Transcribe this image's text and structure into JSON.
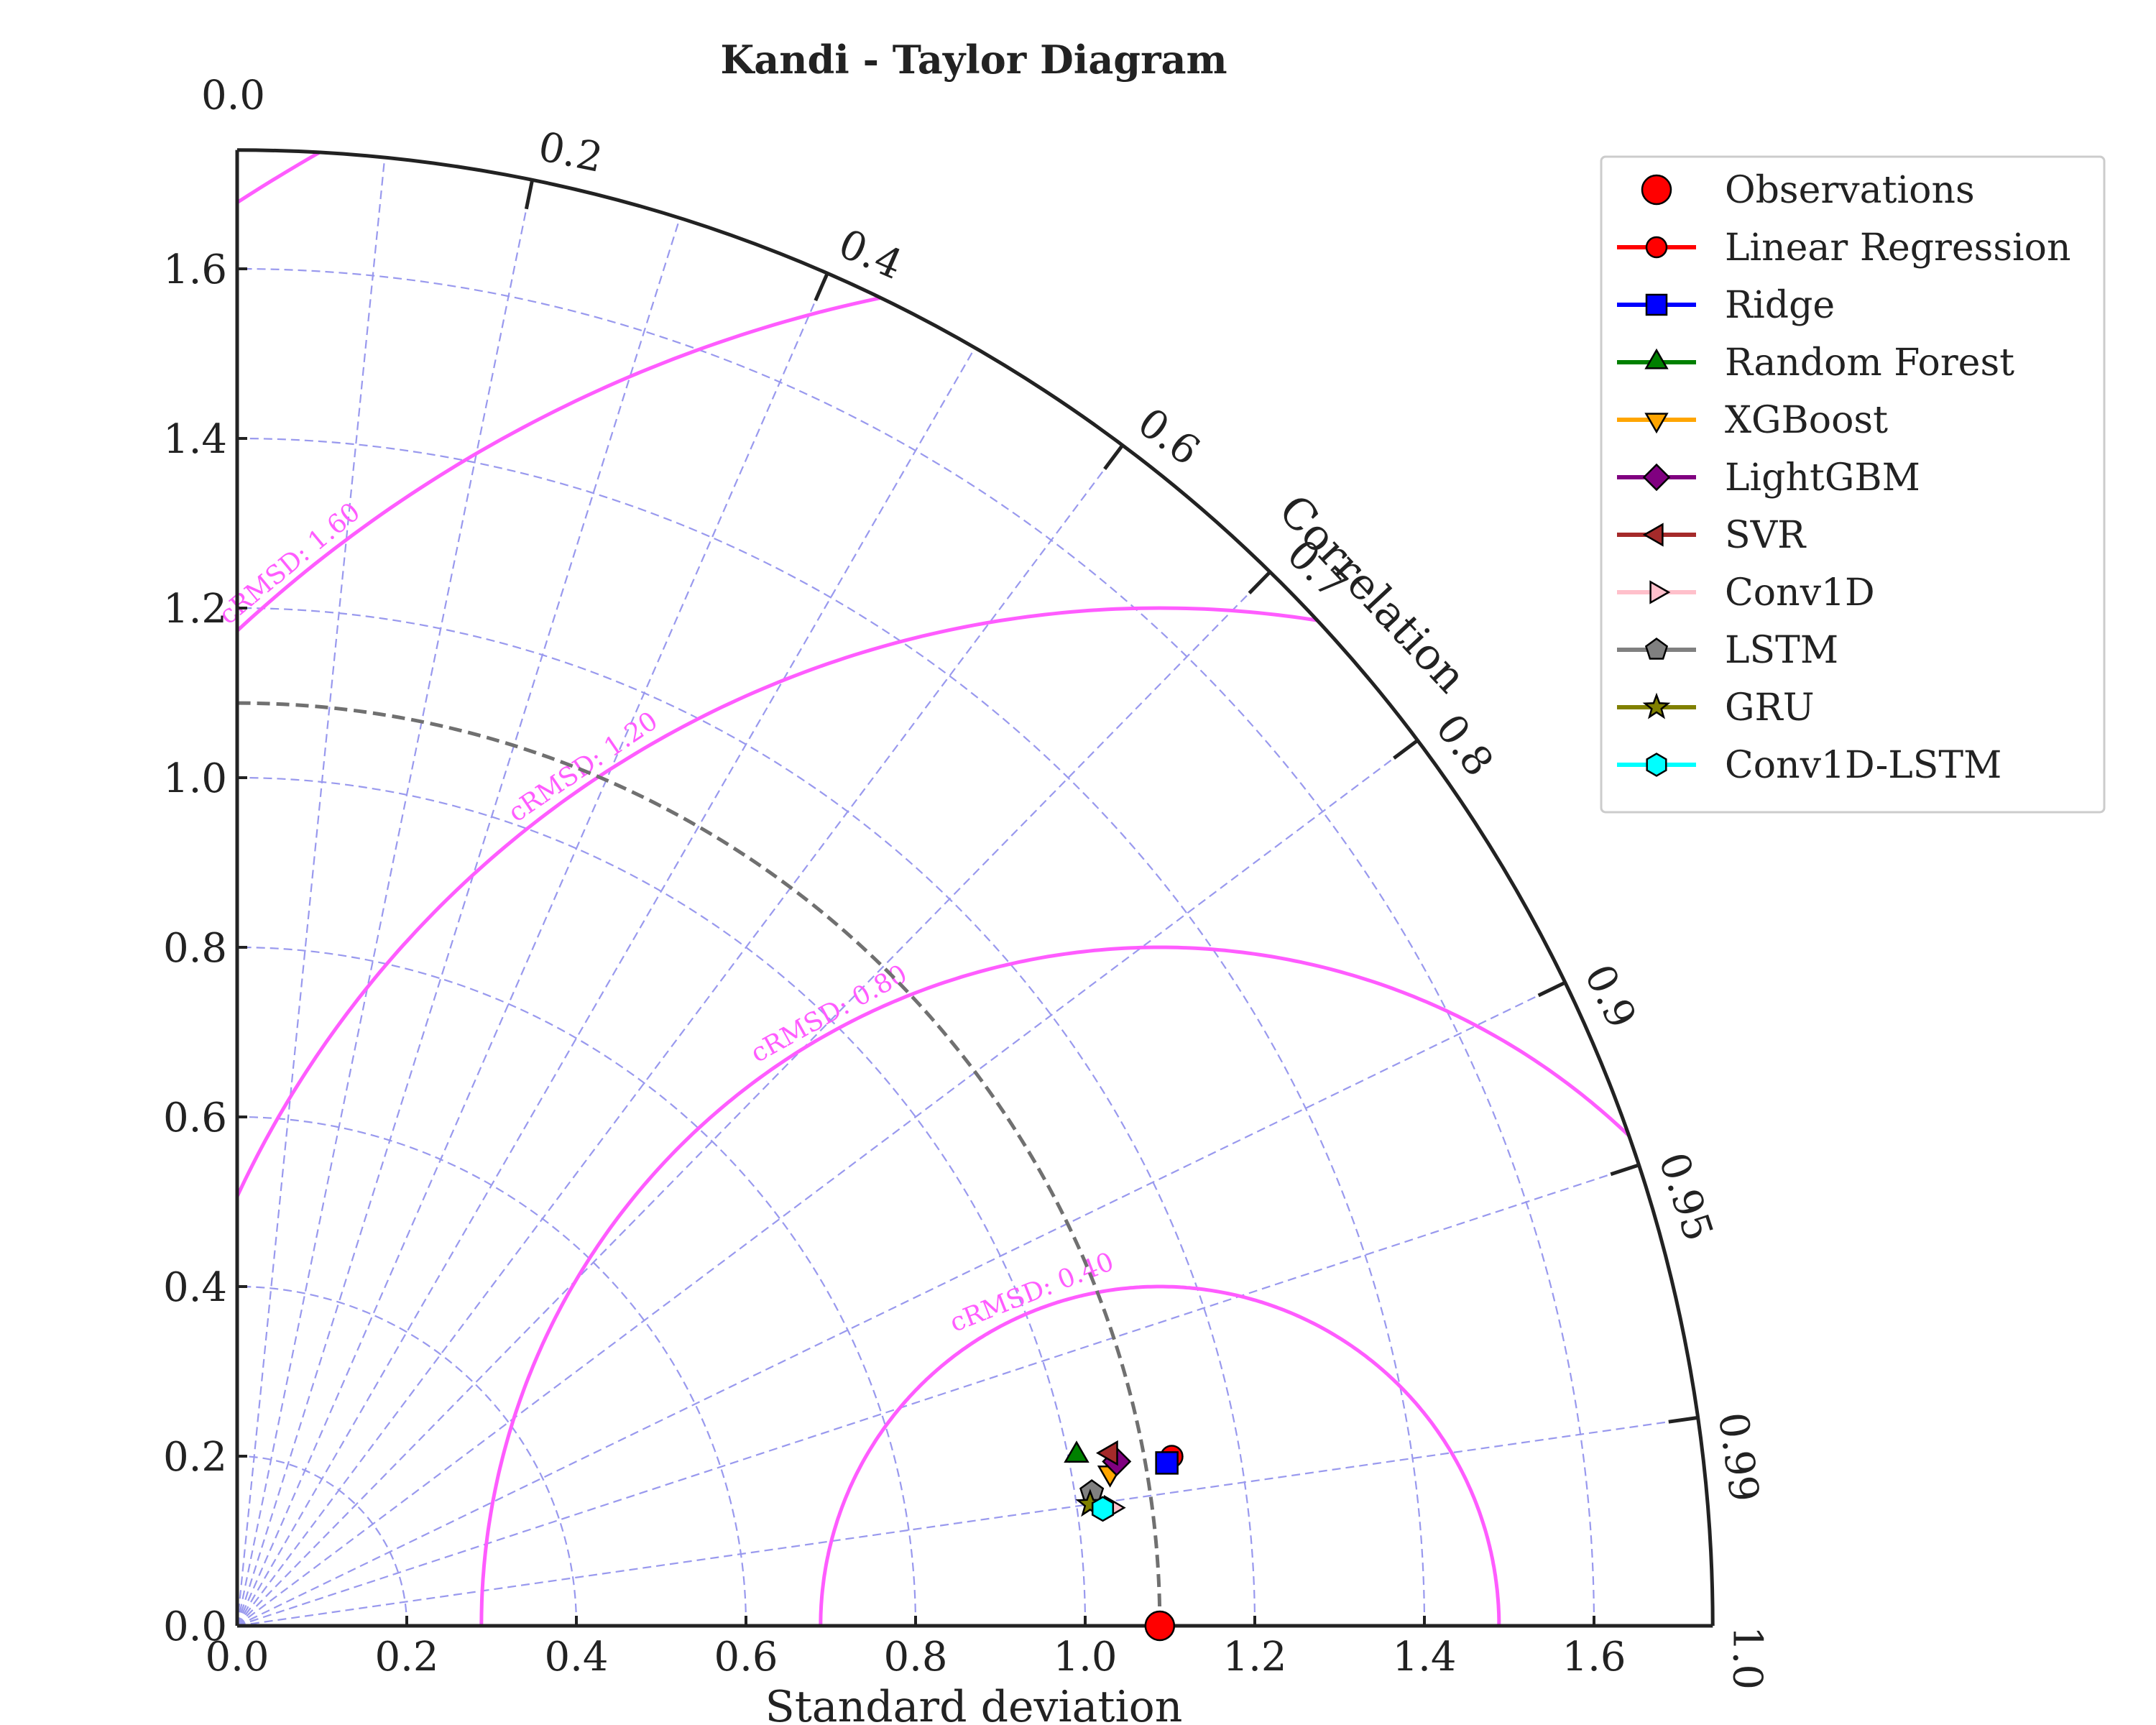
{
  "chart_data": {
    "type": "scatter",
    "subtype": "taylor-diagram",
    "title": "Kandi - Taylor Diagram",
    "xlabel": "Standard deviation",
    "ylabel": "",
    "correlation_label": "Correlation",
    "std_range": [
      0,
      1.74
    ],
    "std_ticks": [
      {
        "value": 0.0,
        "label": "0.0"
      },
      {
        "value": 0.2,
        "label": "0.2"
      },
      {
        "value": 0.4,
        "label": "0.4"
      },
      {
        "value": 0.6,
        "label": "0.6"
      },
      {
        "value": 0.8,
        "label": "0.8"
      },
      {
        "value": 1.0,
        "label": "1.0"
      },
      {
        "value": 1.2,
        "label": "1.2"
      },
      {
        "value": 1.4,
        "label": "1.4"
      },
      {
        "value": 1.6,
        "label": "1.6"
      }
    ],
    "correlation_ticks": [
      {
        "value": 0.0,
        "label": "0.0"
      },
      {
        "value": 0.2,
        "label": "0.2"
      },
      {
        "value": 0.4,
        "label": "0.4"
      },
      {
        "value": 0.6,
        "label": "0.6"
      },
      {
        "value": 0.7,
        "label": "0.7"
      },
      {
        "value": 0.8,
        "label": "0.8"
      },
      {
        "value": 0.9,
        "label": "0.9"
      },
      {
        "value": 0.95,
        "label": "0.95"
      },
      {
        "value": 0.99,
        "label": "0.99"
      },
      {
        "value": 1.0,
        "label": "1.0"
      }
    ],
    "grid_correlations": [
      0.1,
      0.2,
      0.3,
      0.4,
      0.5,
      0.6,
      0.7,
      0.8,
      0.9,
      0.95,
      0.99
    ],
    "reference_std": 1.088,
    "crmsd_contours": [
      {
        "value": 0.4,
        "label": "cRMSD: 0.40"
      },
      {
        "value": 0.8,
        "label": "cRMSD: 0.80"
      },
      {
        "value": 1.2,
        "label": "cRMSD: 1.20"
      },
      {
        "value": 1.6,
        "label": "cRMSD: 1.60"
      }
    ],
    "crmsd_extra_levels": [
      2.0
    ],
    "legend_position": "upper-right",
    "grid": true,
    "series": [
      {
        "name": "Observations",
        "marker": "circle",
        "color": "#ff0000",
        "std": 1.088,
        "corr": 1.0
      },
      {
        "name": "Linear Regression",
        "marker": "circle",
        "color": "#ff0000",
        "std": 1.12,
        "corr": 0.984
      },
      {
        "name": "Ridge",
        "marker": "square",
        "color": "#0000ff",
        "std": 1.113,
        "corr": 0.985
      },
      {
        "name": "Random Forest",
        "marker": "triangle-up",
        "color": "#008000",
        "std": 1.01,
        "corr": 0.98
      },
      {
        "name": "XGBoost",
        "marker": "triangle-down",
        "color": "#ffa500",
        "std": 1.045,
        "corr": 0.985
      },
      {
        "name": "LightGBM",
        "marker": "diamond",
        "color": "#800080",
        "std": 1.055,
        "corr": 0.983
      },
      {
        "name": "SVR",
        "marker": "triangle-left",
        "color": "#a52a2a",
        "std": 1.05,
        "corr": 0.981
      },
      {
        "name": "Conv1D",
        "marker": "triangle-right",
        "color": "#ffc0cb",
        "std": 1.04,
        "corr": 0.991
      },
      {
        "name": "LSTM",
        "marker": "pentagon",
        "color": "#808080",
        "std": 1.02,
        "corr": 0.988
      },
      {
        "name": "GRU",
        "marker": "star",
        "color": "#808000",
        "std": 1.016,
        "corr": 0.99
      },
      {
        "name": "Conv1D-LSTM",
        "marker": "hexagon",
        "color": "#00ffff",
        "std": 1.03,
        "corr": 0.991
      }
    ]
  }
}
